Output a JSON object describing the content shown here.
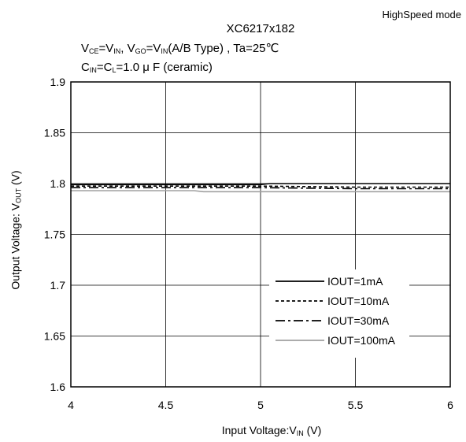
{
  "header": {
    "mode": "HighSpeed mode",
    "title": "XC6217x182",
    "cond1": {
      "a": "V",
      "a_sub": "CE",
      "b": "=V",
      "b_sub": "IN",
      "c": ", V",
      "c_sub": "GO",
      "d": "=V",
      "d_sub": "IN",
      "e": "(A/B Type) , Ta=25℃"
    },
    "cond2": {
      "a": "C",
      "a_sub": "IN",
      "b": "=C",
      "b_sub": "L",
      "c": "=1.0 μ F (ceramic)"
    }
  },
  "axes": {
    "ylabel": {
      "a": "Output Voltage: V",
      "a_sub": "OUT",
      "b": " (V)"
    },
    "xlabel": {
      "a": "Input Voltage:V",
      "a_sub": "IN",
      "b": " (V)"
    }
  },
  "chart_data": {
    "type": "line",
    "title": "XC6217x182",
    "xlabel": "Input Voltage:VIN (V)",
    "ylabel": "Output Voltage: VOUT (V)",
    "xlim": [
      4,
      6
    ],
    "ylim": [
      1.6,
      1.9
    ],
    "xticks": [
      4,
      4.5,
      5,
      5.5,
      6
    ],
    "xtick_labels": [
      "4",
      "4.5",
      "5",
      "5.5",
      "6"
    ],
    "yticks": [
      1.6,
      1.65,
      1.7,
      1.75,
      1.8,
      1.85,
      1.9
    ],
    "ytick_labels": [
      "1.6",
      "1.65",
      "1.7",
      "1.75",
      "1.8",
      "1.85",
      "1.9"
    ],
    "grid": true,
    "legend_position": "bottom-right",
    "series": [
      {
        "name": "IOUT=1mA",
        "dash": "solid",
        "color": "#000000",
        "x": [
          4,
          5,
          5.05,
          6
        ],
        "y": [
          1.799,
          1.799,
          1.8,
          1.8
        ]
      },
      {
        "name": "IOUT=10mA",
        "dash": "dotted",
        "color": "#000000",
        "x": [
          4,
          5,
          5.5,
          6
        ],
        "y": [
          1.7975,
          1.7975,
          1.7965,
          1.7965
        ]
      },
      {
        "name": "IOUT=30mA",
        "dash": "dashdot",
        "color": "#000000",
        "x": [
          4,
          5,
          5.5,
          6
        ],
        "y": [
          1.796,
          1.796,
          1.795,
          1.795
        ]
      },
      {
        "name": "IOUT=100mA",
        "dash": "solid",
        "color": "#a0a0a0",
        "x": [
          4,
          4.65,
          4.7,
          6
        ],
        "y": [
          1.793,
          1.793,
          1.792,
          1.792
        ]
      }
    ]
  }
}
